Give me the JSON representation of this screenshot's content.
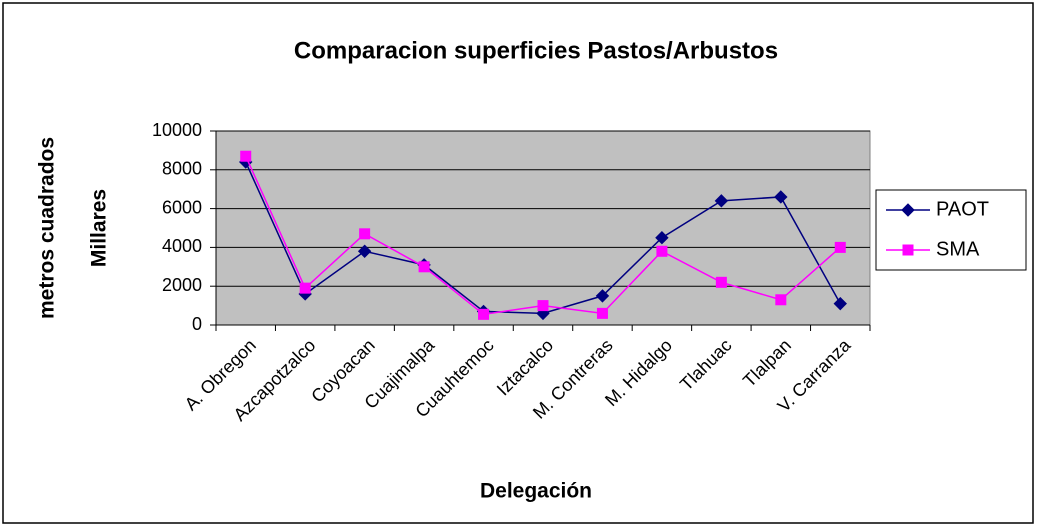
{
  "chart_data": {
    "type": "line",
    "title": "Comparacion superficies Pastos/Arbustos",
    "x_label": "Delegación",
    "y_label": "metros cuadrados",
    "y_label_2": "Millares",
    "categories": [
      "A. Obregon",
      "Azcapotzalco",
      "Coyoacan",
      "Cuajimalpa",
      "Cuauhtemoc",
      "Iztacalco",
      "M. Contreras",
      "M. Hidalgo",
      "Tlahuac",
      "Tlalpan",
      "V. Carranza"
    ],
    "series": [
      {
        "name": "PAOT",
        "color": "#000080",
        "marker": "diamond",
        "values": [
          8400,
          1600,
          3800,
          3100,
          700,
          600,
          1500,
          4500,
          6400,
          6600,
          1100
        ]
      },
      {
        "name": "SMA",
        "color": "#ff00ff",
        "marker": "square",
        "values": [
          8700,
          1900,
          4700,
          3000,
          550,
          1000,
          600,
          3800,
          2200,
          1300,
          4000
        ]
      }
    ],
    "ylim": [
      0,
      10000
    ],
    "yticks": [
      0,
      2000,
      4000,
      6000,
      8000,
      10000
    ],
    "grid": true,
    "legend": "right"
  }
}
